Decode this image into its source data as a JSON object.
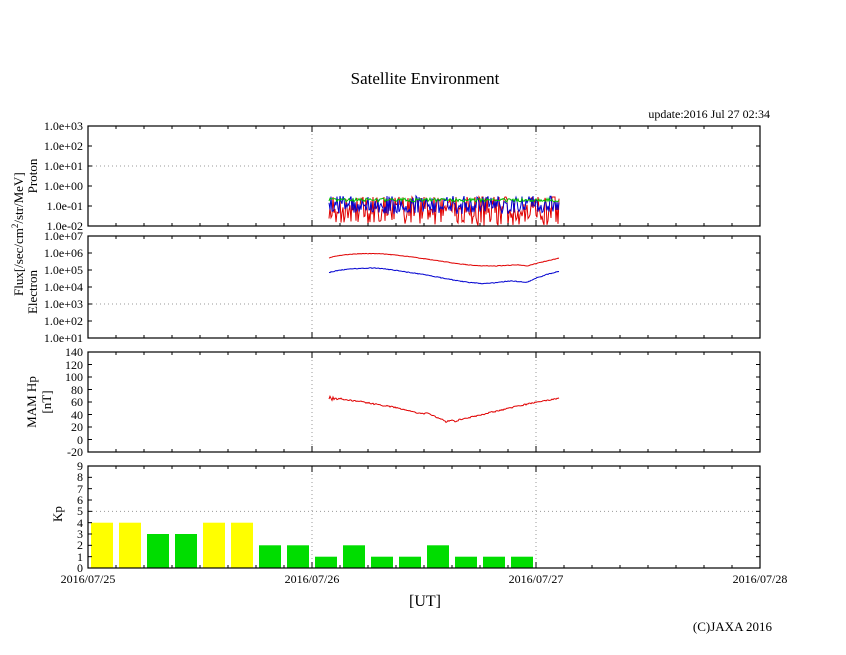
{
  "header": {
    "title": "Satellite Environment",
    "update": "update:2016 Jul 27 02:34"
  },
  "footer": {
    "copyright": "(C)JAXA 2016"
  },
  "axis_labels": {
    "flux_pre": "Flux[/sec/cm",
    "flux_sup": "2",
    "flux_post": "/str/MeV]",
    "proton": "Proton",
    "electron": "Electron",
    "mam_line1": "MAM Hp",
    "mam_line2": "[nT]",
    "kp": "Kp"
  },
  "x_axis": {
    "label": "[UT]",
    "tick_labels": [
      "2016/07/25",
      "2016/07/26",
      "2016/07/27",
      "2016/07/28"
    ],
    "tick_days": [
      0,
      1,
      2,
      3
    ],
    "minor_tick_hours": 3,
    "day_gridlines": [
      1,
      2
    ]
  },
  "chart_data": [
    {
      "id": "proton",
      "type": "line",
      "y_scale": "log10",
      "y_range_exp": [
        -2,
        3
      ],
      "y_tick_labels": [
        "1.0e+03",
        "1.0e+02",
        "1.0e+01",
        "1.0e+00",
        "1.0e-01",
        "1.0e-02"
      ],
      "y_tick_values": [
        3,
        2,
        1,
        0,
        -1,
        -2
      ],
      "threshold_value": 1,
      "data_window_days": [
        1.076,
        2.103
      ],
      "series": [
        {
          "name": "proton-channel-red",
          "color": "#e00000",
          "anchors": [
            [
              1.076,
              -1.2
            ],
            [
              2.103,
              -1.2
            ]
          ],
          "noise": 0.8,
          "clip": [
            -2.0,
            -0.55
          ]
        },
        {
          "name": "proton-channel-blue",
          "color": "#0000d0",
          "anchors": [
            [
              1.076,
              -0.95
            ],
            [
              2.103,
              -0.95
            ]
          ],
          "noise": 0.45,
          "clip": [
            -1.5,
            -0.5
          ]
        },
        {
          "name": "proton-channel-green",
          "color": "#00c000",
          "anchors": [
            [
              1.076,
              -0.7
            ],
            [
              2.103,
              -0.7
            ]
          ],
          "noise": 0.09,
          "clip": [
            -1.0,
            -0.4
          ]
        }
      ]
    },
    {
      "id": "electron",
      "type": "line",
      "y_scale": "log10",
      "y_range_exp": [
        1,
        7
      ],
      "y_tick_labels": [
        "1.0e+07",
        "1.0e+06",
        "1.0e+05",
        "1.0e+04",
        "1.0e+03",
        "1.0e+02",
        "1.0e+01"
      ],
      "y_tick_values": [
        7,
        6,
        5,
        4,
        3,
        2,
        1
      ],
      "threshold_value": 3,
      "data_window_days": [
        1.076,
        2.103
      ],
      "series": [
        {
          "name": "electron-channel-red",
          "color": "#e00000",
          "noise": 0.018,
          "anchors": [
            [
              1.076,
              5.72
            ],
            [
              1.11,
              5.83
            ],
            [
              1.16,
              5.91
            ],
            [
              1.22,
              5.96
            ],
            [
              1.28,
              5.97
            ],
            [
              1.33,
              5.93
            ],
            [
              1.38,
              5.87
            ],
            [
              1.45,
              5.76
            ],
            [
              1.52,
              5.63
            ],
            [
              1.58,
              5.51
            ],
            [
              1.64,
              5.39
            ],
            [
              1.7,
              5.3
            ],
            [
              1.76,
              5.24
            ],
            [
              1.82,
              5.24
            ],
            [
              1.88,
              5.28
            ],
            [
              1.92,
              5.3
            ],
            [
              1.96,
              5.23
            ],
            [
              2.0,
              5.38
            ],
            [
              2.05,
              5.54
            ],
            [
              2.103,
              5.7
            ]
          ]
        },
        {
          "name": "electron-channel-blue",
          "color": "#0000d0",
          "noise": 0.022,
          "anchors": [
            [
              1.076,
              4.85
            ],
            [
              1.11,
              4.96
            ],
            [
              1.16,
              5.05
            ],
            [
              1.22,
              5.1
            ],
            [
              1.28,
              5.12
            ],
            [
              1.33,
              5.06
            ],
            [
              1.38,
              4.97
            ],
            [
              1.45,
              4.83
            ],
            [
              1.52,
              4.69
            ],
            [
              1.58,
              4.53
            ],
            [
              1.64,
              4.39
            ],
            [
              1.7,
              4.27
            ],
            [
              1.76,
              4.2
            ],
            [
              1.82,
              4.25
            ],
            [
              1.88,
              4.35
            ],
            [
              1.92,
              4.33
            ],
            [
              1.96,
              4.28
            ],
            [
              2.0,
              4.52
            ],
            [
              2.05,
              4.74
            ],
            [
              2.103,
              4.92
            ]
          ]
        }
      ]
    },
    {
      "id": "mam-hp",
      "type": "line",
      "y_scale": "linear",
      "y_range": [
        -20,
        140
      ],
      "y_tick_labels": [
        "140",
        "120",
        "100",
        "80",
        "60",
        "40",
        "20",
        "0",
        "-20"
      ],
      "y_tick_values": [
        140,
        120,
        100,
        80,
        60,
        40,
        20,
        0,
        -20
      ],
      "data_window_days": [
        1.076,
        2.103
      ],
      "series": [
        {
          "name": "hp-trace",
          "color": "#e00000",
          "noise": 1.1,
          "anchors": [
            [
              1.076,
              64
            ],
            [
              1.082,
              70
            ],
            [
              1.088,
              62
            ],
            [
              1.094,
              69
            ],
            [
              1.1,
              63
            ],
            [
              1.106,
              68
            ],
            [
              1.112,
              64
            ],
            [
              1.12,
              66
            ],
            [
              1.16,
              63
            ],
            [
              1.21,
              61
            ],
            [
              1.26,
              58
            ],
            [
              1.31,
              55
            ],
            [
              1.36,
              52
            ],
            [
              1.41,
              48
            ],
            [
              1.45,
              45
            ],
            [
              1.49,
              41
            ],
            [
              1.52,
              42
            ],
            [
              1.54,
              38
            ],
            [
              1.56,
              35
            ],
            [
              1.585,
              31
            ],
            [
              1.6,
              28
            ],
            [
              1.62,
              31
            ],
            [
              1.64,
              29
            ],
            [
              1.66,
              32
            ],
            [
              1.7,
              35
            ],
            [
              1.74,
              38
            ],
            [
              1.78,
              42
            ],
            [
              1.82,
              45
            ],
            [
              1.86,
              48
            ],
            [
              1.9,
              52
            ],
            [
              1.94,
              55
            ],
            [
              1.98,
              58
            ],
            [
              2.02,
              61
            ],
            [
              2.06,
              63
            ],
            [
              2.103,
              66
            ]
          ]
        }
      ]
    },
    {
      "id": "kp",
      "type": "bar",
      "y_scale": "linear",
      "y_range": [
        0,
        9
      ],
      "y_tick_labels": [
        "9",
        "8",
        "7",
        "6",
        "5",
        "4",
        "3",
        "2",
        "1",
        "0"
      ],
      "y_tick_values": [
        9,
        8,
        7,
        6,
        5,
        4,
        3,
        2,
        1,
        0
      ],
      "threshold_value": 5,
      "bar_hours": 3,
      "start_day": 0,
      "values": [
        4,
        4,
        3,
        3,
        4,
        4,
        2,
        2,
        1,
        2,
        1,
        1,
        2,
        1,
        1,
        1
      ],
      "color_quiet": "#00dd00",
      "color_active": "#ffff00",
      "active_min": 4
    }
  ]
}
